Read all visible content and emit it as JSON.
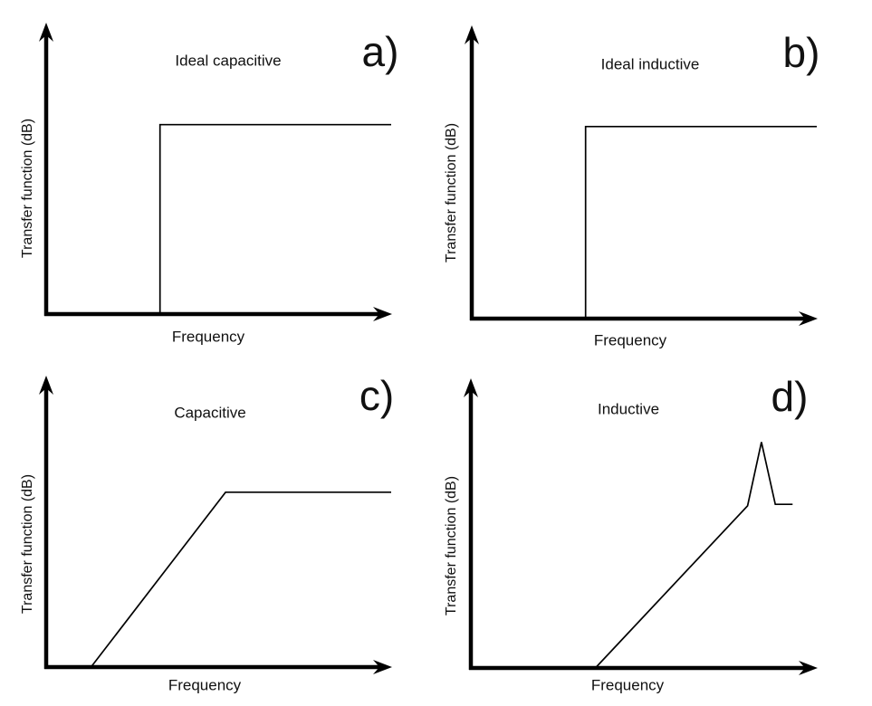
{
  "figure": {
    "background_color": "#ffffff",
    "line_color": "#000000",
    "text_color": "#111111",
    "description": "Four-panel schematic plots of sensor transfer function versus frequency"
  },
  "chart_data": [
    {
      "type": "line",
      "panel_id": "a",
      "corner_label": "a)",
      "title": "Ideal capacitive",
      "xlabel": "Frequency",
      "ylabel": "Transfer function (dB)",
      "axes": {
        "x_ticks": "none",
        "y_ticks": "none",
        "grid": false,
        "style": "arrow-ended qualitative axes"
      },
      "shape": "ideal step: zero response below cutoff, flat plateau above",
      "x_range_norm": [
        0,
        1
      ],
      "y_range_norm": [
        0,
        1
      ],
      "points_norm": [
        {
          "x": 0.33,
          "y": 0.0
        },
        {
          "x": 0.33,
          "y": 0.65
        },
        {
          "x": 1.0,
          "y": 0.65
        }
      ]
    },
    {
      "type": "line",
      "panel_id": "b",
      "corner_label": "b)",
      "title": "Ideal inductive",
      "xlabel": "Frequency",
      "ylabel": "Transfer function (dB)",
      "axes": {
        "x_ticks": "none",
        "y_ticks": "none",
        "grid": false,
        "style": "arrow-ended qualitative axes"
      },
      "shape": "ideal step: zero response below cutoff, flat plateau above",
      "x_range_norm": [
        0,
        1
      ],
      "y_range_norm": [
        0,
        1
      ],
      "points_norm": [
        {
          "x": 0.33,
          "y": 0.0
        },
        {
          "x": 0.33,
          "y": 0.655
        },
        {
          "x": 1.0,
          "y": 0.655
        }
      ]
    },
    {
      "type": "line",
      "panel_id": "c",
      "corner_label": "c)",
      "title": "Capacitive",
      "xlabel": "Frequency",
      "ylabel": "Transfer function (dB)",
      "axes": {
        "x_ticks": "none",
        "y_ticks": "none",
        "grid": false,
        "style": "arrow-ended qualitative axes"
      },
      "shape": "linear ramp rising from axis, then flat plateau",
      "x_range_norm": [
        0,
        1
      ],
      "y_range_norm": [
        0,
        1
      ],
      "points_norm": [
        {
          "x": 0.13,
          "y": 0.0
        },
        {
          "x": 0.52,
          "y": 0.6
        },
        {
          "x": 1.0,
          "y": 0.6
        }
      ]
    },
    {
      "type": "line",
      "panel_id": "d",
      "corner_label": "d)",
      "title": "Inductive",
      "xlabel": "Frequency",
      "ylabel": "Transfer function (dB)",
      "axes": {
        "x_ticks": "none",
        "y_ticks": "none",
        "grid": false,
        "style": "arrow-ended qualitative axes"
      },
      "shape": "linear ramp rising from axis, sharp resonance peak, then flat plateau",
      "x_range_norm": [
        0,
        1
      ],
      "y_range_norm": [
        0,
        1
      ],
      "points_norm": [
        {
          "x": 0.36,
          "y": 0.0
        },
        {
          "x": 0.8,
          "y": 0.56
        },
        {
          "x": 0.84,
          "y": 0.78
        },
        {
          "x": 0.88,
          "y": 0.565
        },
        {
          "x": 0.93,
          "y": 0.565
        }
      ]
    }
  ]
}
